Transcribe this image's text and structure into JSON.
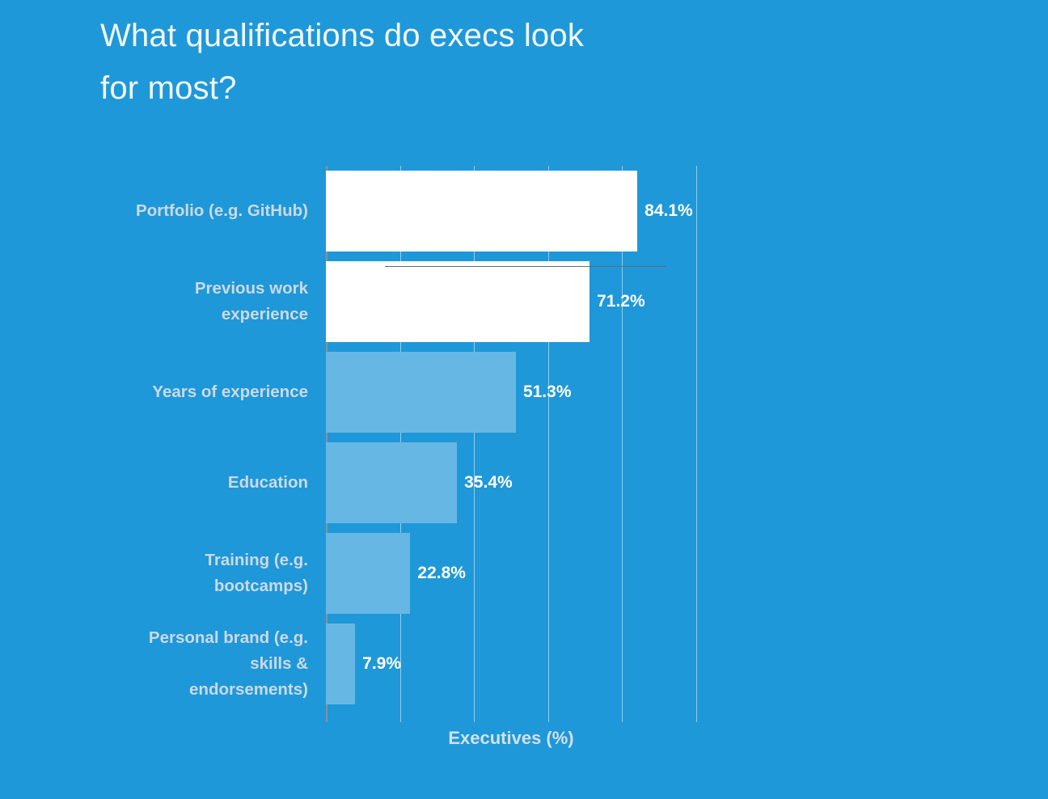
{
  "title": "What qualifications do execs look\nfor most?",
  "colors": {
    "background": "#1e98d8",
    "bar_white": "#ffffff",
    "bar_light_blue": "#67b7e5",
    "gridline": "#93cdef",
    "axis_line": "#7e95a3",
    "category_label": "#ccd9e4",
    "value_label": "#ffffff",
    "title_text": "#f3f8fb"
  },
  "chart_data": {
    "type": "bar",
    "orientation": "horizontal",
    "title": "What qualifications do execs look for most?",
    "categories": [
      "Portfolio (e.g. GitHub)",
      "Previous work\nexperience",
      "Years of experience",
      "Education",
      "Training (e.g.\nbootcamps)",
      "Personal brand (e.g.\nskills &\nendorsements)"
    ],
    "values": [
      84.1,
      71.2,
      51.3,
      35.4,
      22.8,
      7.9
    ],
    "value_labels": [
      "84.1%",
      "71.2%",
      "51.3%",
      "35.4%",
      "22.8%",
      "7.9%"
    ],
    "bar_colors": [
      "#ffffff",
      "#ffffff",
      "#67b7e5",
      "#67b7e5",
      "#67b7e5",
      "#67b7e5"
    ],
    "xlabel": "Executives (%)",
    "ylabel": "",
    "xlim": [
      0,
      100
    ],
    "gridlines": [
      0,
      20,
      40,
      60,
      80,
      100
    ],
    "grid": "vertical",
    "legend": "none"
  }
}
